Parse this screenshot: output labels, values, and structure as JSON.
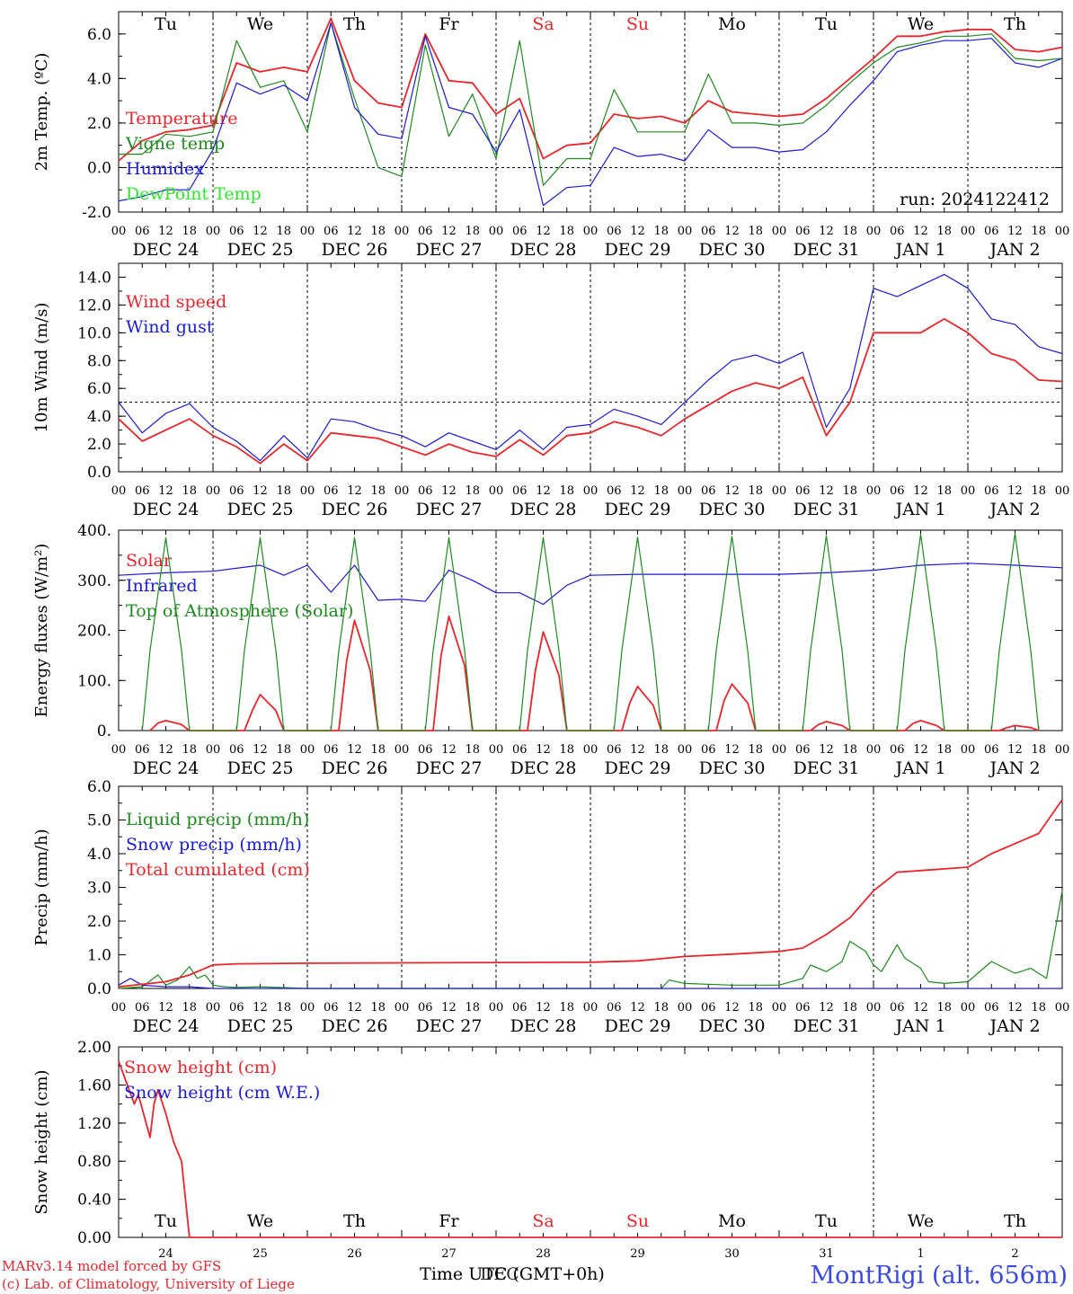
{
  "days": [
    "DEC 24",
    "DEC 25",
    "DEC 26",
    "DEC 27",
    "DEC 28",
    "DEC 29",
    "DEC 30",
    "DEC 31",
    "JAN  1",
    "JAN  2"
  ],
  "weekdays": [
    {
      "label": "Tu",
      "color": "#000000"
    },
    {
      "label": "We",
      "color": "#000000"
    },
    {
      "label": "Th",
      "color": "#000000"
    },
    {
      "label": "Fr",
      "color": "#000000"
    },
    {
      "label": "Sa",
      "color": "#e8262c"
    },
    {
      "label": "Su",
      "color": "#e8262c"
    },
    {
      "label": "Mo",
      "color": "#000000"
    },
    {
      "label": "Tu",
      "color": "#000000"
    },
    {
      "label": "We",
      "color": "#000000"
    },
    {
      "label": "Th",
      "color": "#000000"
    }
  ],
  "hour_ticks": [
    "00",
    "06",
    "12",
    "18"
  ],
  "last_tick": "00",
  "x_unit": "hours since DEC 24 00 UTC",
  "run_label": "run: 2024122412",
  "footer": {
    "model_line": "MARv3.14 model forced by GFS",
    "copyright_line": "(c) Lab. of Climatology, University of Liege",
    "time_label": "Time UTC (GMT+0h)",
    "overlap_label": "DEC",
    "station": "MontRigi (alt. 656m)",
    "day_numbers": [
      "24",
      "25",
      "26",
      "27",
      "28",
      "29",
      "30",
      "31",
      "1",
      "2"
    ]
  },
  "colors": {
    "red": "#e8262c",
    "green": "#1e8a1e",
    "blue": "#1a1ad9",
    "lightgreen": "#2ee62e",
    "station": "#3a4ae0"
  },
  "chart_data": [
    {
      "type": "line",
      "ylabel": "2m Temp. (ºC)",
      "ylim": [
        -2,
        7
      ],
      "yticks": [
        "-2.0",
        "0.0",
        "2.0",
        "4.0",
        "6.0"
      ],
      "ytick_values": [
        -2,
        0,
        2,
        4,
        6
      ],
      "zero_line": 0,
      "series": [
        {
          "name": "Temperature",
          "color": "red",
          "x": [
            0,
            6,
            12,
            18,
            24,
            30,
            36,
            42,
            48,
            54,
            60,
            66,
            72,
            78,
            84,
            90,
            96,
            102,
            108,
            114,
            120,
            126,
            132,
            138,
            144,
            150,
            156,
            162,
            168,
            174,
            180,
            186,
            192,
            198,
            204,
            210,
            216,
            222,
            228,
            234,
            240
          ],
          "y": [
            0.3,
            1.2,
            1.6,
            1.7,
            1.9,
            4.7,
            4.3,
            4.5,
            4.3,
            6.7,
            3.9,
            2.9,
            2.7,
            6.0,
            3.9,
            3.8,
            2.4,
            3.1,
            0.4,
            1.0,
            1.1,
            2.4,
            2.2,
            2.3,
            2.0,
            3.0,
            2.5,
            2.4,
            2.3,
            2.4,
            3.1,
            4.0,
            4.9,
            5.9,
            5.9,
            6.1,
            6.2,
            6.2,
            5.3,
            5.2,
            5.4
          ]
        },
        {
          "name": "Vigne temp",
          "color": "green",
          "x": [
            0,
            6,
            12,
            18,
            24,
            30,
            36,
            42,
            48,
            54,
            60,
            66,
            72,
            78,
            84,
            90,
            96,
            102,
            108,
            114,
            120,
            126,
            132,
            138,
            144,
            150,
            156,
            162,
            168,
            174,
            180,
            186,
            192,
            198,
            204,
            210,
            216,
            222,
            228,
            234,
            240
          ],
          "y": [
            0.6,
            0.6,
            1.5,
            1.4,
            1.6,
            5.7,
            3.6,
            3.9,
            1.6,
            6.5,
            3.1,
            0.0,
            -0.4,
            5.5,
            1.4,
            3.3,
            0.4,
            5.7,
            -0.8,
            0.4,
            0.4,
            3.5,
            1.6,
            1.6,
            1.6,
            4.2,
            2.0,
            2.0,
            1.9,
            2.0,
            2.8,
            3.8,
            4.7,
            5.4,
            5.6,
            5.9,
            5.9,
            6.0,
            4.9,
            4.8,
            4.9
          ]
        },
        {
          "name": "Humidex",
          "color": "blue",
          "x": [
            0,
            6,
            12,
            18,
            24,
            30,
            36,
            42,
            48,
            54,
            60,
            66,
            72,
            78,
            84,
            90,
            96,
            102,
            108,
            114,
            120,
            126,
            132,
            138,
            144,
            150,
            156,
            162,
            168,
            174,
            180,
            186,
            192,
            198,
            204,
            210,
            216,
            222,
            228,
            234,
            240
          ],
          "y": [
            -1.5,
            -1.3,
            -1.0,
            -1.0,
            0.8,
            3.8,
            3.3,
            3.7,
            3.0,
            6.5,
            2.7,
            1.5,
            1.3,
            5.9,
            2.7,
            2.4,
            0.7,
            2.6,
            -1.7,
            -0.9,
            -0.8,
            0.9,
            0.5,
            0.6,
            0.3,
            1.7,
            0.9,
            0.9,
            0.7,
            0.8,
            1.6,
            2.8,
            3.9,
            5.2,
            5.5,
            5.7,
            5.7,
            5.8,
            4.7,
            4.5,
            4.9
          ]
        },
        {
          "name": "DewPoint Temp",
          "color": "lightgreen",
          "x": [],
          "y": []
        }
      ]
    },
    {
      "type": "line",
      "ylabel": "10m Wind (m/s)",
      "ylim": [
        0,
        15
      ],
      "yticks": [
        "0.0",
        "2.0",
        "4.0",
        "6.0",
        "8.0",
        "10.0",
        "12.0",
        "14.0"
      ],
      "ytick_values": [
        0,
        2,
        4,
        6,
        8,
        10,
        12,
        14
      ],
      "zero_line": 5,
      "series": [
        {
          "name": "Wind speed",
          "color": "red",
          "x": [
            0,
            6,
            12,
            18,
            24,
            30,
            36,
            42,
            48,
            54,
            60,
            66,
            72,
            78,
            84,
            90,
            96,
            102,
            108,
            114,
            120,
            126,
            132,
            138,
            144,
            150,
            156,
            162,
            168,
            174,
            180,
            186,
            192,
            198,
            204,
            210,
            216,
            222,
            228,
            234,
            240
          ],
          "y": [
            3.8,
            2.2,
            3.0,
            3.8,
            2.6,
            1.8,
            0.6,
            2.0,
            0.8,
            2.8,
            2.6,
            2.4,
            1.8,
            1.2,
            2.0,
            1.4,
            1.1,
            2.3,
            1.2,
            2.6,
            2.8,
            3.6,
            3.2,
            2.6,
            3.8,
            4.8,
            5.8,
            6.4,
            6.0,
            6.8,
            2.6,
            5.0,
            10.0,
            10.0,
            10.0,
            11.0,
            10.0,
            8.5,
            8.0,
            6.6,
            6.5
          ]
        },
        {
          "name": "Wind gust",
          "color": "blue",
          "x": [
            0,
            6,
            12,
            18,
            24,
            30,
            36,
            42,
            48,
            54,
            60,
            66,
            72,
            78,
            84,
            90,
            96,
            102,
            108,
            114,
            120,
            126,
            132,
            138,
            144,
            150,
            156,
            162,
            168,
            174,
            180,
            186,
            192,
            198,
            204,
            210,
            216,
            222,
            228,
            234,
            240
          ],
          "y": [
            5.0,
            2.8,
            4.2,
            4.9,
            3.2,
            2.2,
            0.8,
            2.6,
            1.0,
            3.8,
            3.6,
            3.0,
            2.6,
            1.8,
            2.8,
            2.2,
            1.6,
            3.0,
            1.6,
            3.2,
            3.4,
            4.5,
            4.0,
            3.4,
            5.0,
            6.6,
            8.0,
            8.4,
            7.8,
            8.6,
            3.2,
            6.0,
            13.2,
            12.6,
            13.4,
            14.2,
            13.2,
            11.0,
            10.6,
            9.0,
            8.5
          ]
        }
      ]
    },
    {
      "type": "line",
      "ylabel": "Energy fluxes (W/m²)",
      "ylim": [
        0,
        400
      ],
      "yticks": [
        "0.",
        "100.",
        "200.",
        "300.",
        "400."
      ],
      "ytick_values": [
        0,
        100,
        200,
        300,
        400
      ],
      "series": [
        {
          "name": "Solar",
          "color": "red",
          "x": [
            8,
            10,
            12,
            16,
            18,
            32,
            34,
            36,
            40,
            42,
            56,
            58,
            60,
            64,
            66,
            80,
            82,
            84,
            88,
            90,
            104,
            106,
            108,
            112,
            114,
            128,
            130,
            132,
            136,
            138,
            152,
            154,
            156,
            160,
            162,
            176,
            178,
            180,
            184,
            186,
            200,
            202,
            204,
            208,
            210,
            224,
            226,
            228,
            232,
            234
          ],
          "y": [
            0,
            15,
            20,
            12,
            0,
            0,
            40,
            72,
            40,
            0,
            0,
            140,
            220,
            120,
            0,
            0,
            150,
            228,
            130,
            0,
            0,
            120,
            197,
            110,
            0,
            0,
            55,
            88,
            50,
            0,
            0,
            60,
            93,
            55,
            0,
            0,
            12,
            18,
            10,
            0,
            0,
            14,
            20,
            10,
            0,
            0,
            6,
            10,
            6,
            0
          ]
        },
        {
          "name": "Infrared",
          "color": "blue",
          "x": [
            0,
            12,
            24,
            36,
            42,
            48,
            54,
            60,
            66,
            72,
            78,
            84,
            90,
            96,
            102,
            108,
            114,
            120,
            132,
            144,
            156,
            168,
            180,
            192,
            204,
            216,
            228,
            240
          ],
          "y": [
            310,
            315,
            318,
            330,
            310,
            330,
            276,
            330,
            260,
            262,
            258,
            320,
            300,
            275,
            275,
            252,
            290,
            310,
            312,
            312,
            312,
            312,
            315,
            320,
            330,
            334,
            330,
            325
          ]
        },
        {
          "name": "Top of Atmosphere (Solar)",
          "color": "green",
          "x": [
            6,
            8,
            12,
            16,
            18,
            30,
            32,
            36,
            40,
            42,
            54,
            56,
            60,
            64,
            66,
            78,
            80,
            84,
            88,
            90,
            102,
            104,
            108,
            112,
            114,
            126,
            128,
            132,
            136,
            138,
            150,
            152,
            156,
            160,
            162,
            174,
            176,
            180,
            184,
            186,
            198,
            200,
            204,
            208,
            210,
            222,
            224,
            228,
            232,
            234
          ],
          "y": [
            0,
            160,
            385,
            160,
            0,
            0,
            160,
            385,
            160,
            0,
            0,
            160,
            385,
            160,
            0,
            0,
            160,
            385,
            160,
            0,
            0,
            160,
            385,
            160,
            0,
            0,
            160,
            386,
            160,
            0,
            0,
            160,
            388,
            160,
            0,
            0,
            160,
            389,
            160,
            0,
            0,
            160,
            392,
            160,
            0,
            0,
            160,
            394,
            160,
            0
          ]
        }
      ]
    },
    {
      "type": "line",
      "ylabel": "Precip (mm/h)",
      "ylim": [
        0,
        6
      ],
      "yticks": [
        "0.0",
        "1.0",
        "2.0",
        "3.0",
        "4.0",
        "5.0",
        "6.0"
      ],
      "ytick_values": [
        0,
        1,
        2,
        3,
        4,
        5,
        6
      ],
      "series": [
        {
          "name": "Liquid precip (mm/h)",
          "color": "green",
          "x": [
            0,
            6,
            10,
            12,
            15,
            18,
            20,
            22,
            24,
            27,
            30,
            36,
            48,
            54,
            60,
            96,
            120,
            132,
            138,
            140,
            144,
            156,
            168,
            174,
            176,
            180,
            184,
            186,
            190,
            192,
            194,
            198,
            200,
            204,
            206,
            210,
            216,
            222,
            228,
            232,
            236,
            240
          ],
          "y": [
            0.0,
            0.05,
            0.4,
            0.1,
            0.25,
            0.65,
            0.3,
            0.4,
            0.1,
            0.05,
            0.03,
            0.05,
            0.0,
            0.0,
            0.0,
            0.0,
            0.0,
            0.0,
            0.0,
            0.25,
            0.15,
            0.1,
            0.1,
            0.3,
            0.7,
            0.5,
            0.8,
            1.4,
            1.1,
            0.7,
            0.5,
            1.3,
            0.9,
            0.6,
            0.2,
            0.15,
            0.2,
            0.8,
            0.45,
            0.6,
            0.3,
            2.9
          ]
        },
        {
          "name": "Snow precip (mm/h)",
          "color": "blue",
          "x": [
            0,
            3,
            6,
            12,
            18,
            24,
            48,
            96,
            144,
            168,
            192,
            216,
            240
          ],
          "y": [
            0.1,
            0.3,
            0.1,
            0.05,
            0.05,
            0.0,
            0.0,
            0.0,
            0.0,
            0.0,
            0.0,
            0.0,
            0.0
          ]
        },
        {
          "name": "Total cumulated (cm)",
          "color": "red",
          "x": [
            0,
            12,
            18,
            24,
            30,
            48,
            72,
            96,
            120,
            132,
            144,
            156,
            168,
            174,
            180,
            186,
            192,
            198,
            204,
            216,
            222,
            228,
            234,
            240
          ],
          "y": [
            0.05,
            0.2,
            0.4,
            0.7,
            0.73,
            0.75,
            0.76,
            0.77,
            0.78,
            0.82,
            0.95,
            1.02,
            1.1,
            1.2,
            1.6,
            2.1,
            2.9,
            3.45,
            3.5,
            3.6,
            4.0,
            4.3,
            4.6,
            5.6
          ]
        }
      ]
    },
    {
      "type": "line",
      "ylabel": "Snow height (cm)",
      "ylim": [
        0,
        2
      ],
      "yticks": [
        "0.00",
        "0.40",
        "0.80",
        "1.20",
        "1.60",
        "2.00"
      ],
      "ytick_values": [
        0,
        0.4,
        0.8,
        1.2,
        1.6,
        2.0
      ],
      "series": [
        {
          "name": "Snow height (cm)",
          "color": "red",
          "x": [
            0,
            4,
            5,
            8,
            9,
            10,
            12,
            14,
            16,
            18,
            240
          ],
          "y": [
            1.85,
            1.4,
            1.5,
            1.05,
            1.4,
            1.55,
            1.3,
            1.0,
            0.8,
            0.0,
            0.0
          ]
        },
        {
          "name": "Snow height (cm W.E.)",
          "color": "blue",
          "x": [],
          "y": []
        }
      ]
    }
  ]
}
